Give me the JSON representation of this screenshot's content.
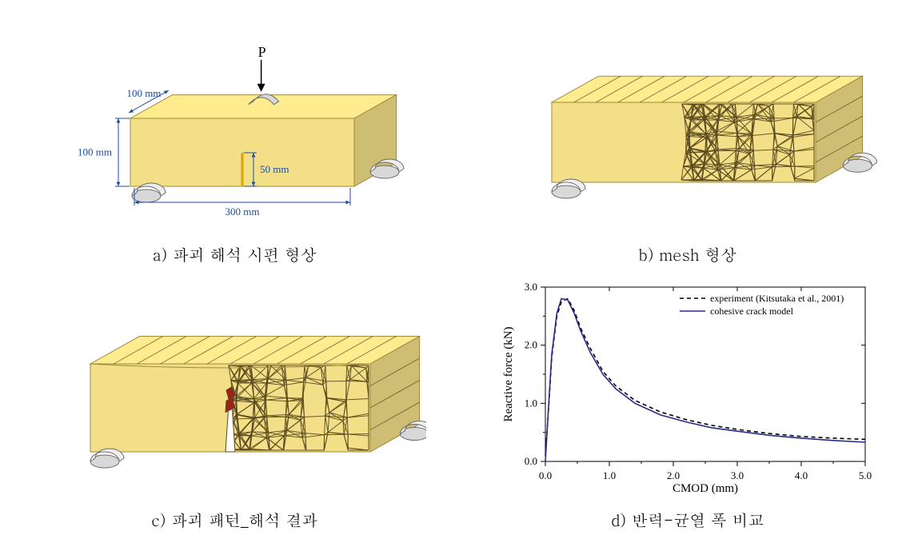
{
  "panels": {
    "a": {
      "caption": "a) 파괴 해석 시편 형상",
      "dims": {
        "width": "100 mm",
        "height": "100 mm",
        "length": "300 mm",
        "notch": "50 mm"
      },
      "load_label": "P",
      "block_fill": "#f2df87",
      "block_edge": "#a2893a",
      "support_fill": "#d8d8d8",
      "support_edge": "#6b6b6b",
      "dim_color": "#1a4ea0",
      "label_color": "#000000"
    },
    "b": {
      "caption": "b) mesh 형상",
      "block_fill": "#f2df87",
      "block_edge": "#a2893a",
      "mesh_edge": "#5a4a1e",
      "support_fill": "#d8d8d8",
      "support_edge": "#6b6b6b"
    },
    "c": {
      "caption": "c) 파괴 패턴_해석 결과",
      "block_fill": "#f2df87",
      "block_edge": "#a2893a",
      "mesh_edge": "#5a4a1e",
      "crack_color": "#a02018"
    },
    "d": {
      "caption": "d) 반력-균열 폭 비교",
      "chart": {
        "type": "line",
        "xlabel": "CMOD (mm)",
        "ylabel": "Reactive force (kN)",
        "xlim": [
          0.0,
          5.0
        ],
        "ylim": [
          0.0,
          3.0
        ],
        "xticks": [
          0.0,
          1.0,
          2.0,
          3.0,
          4.0,
          5.0
        ],
        "yticks": [
          0.0,
          1.0,
          2.0,
          3.0
        ],
        "label_fontsize": 15,
        "tick_fontsize": 13,
        "legend_fontsize": 12,
        "line_width": 1.6,
        "background_color": "#ffffff",
        "axis_color": "#000000",
        "series": [
          {
            "name": "experiment (Kitsutaka et al., 2001)",
            "style": "dashed",
            "color": "#000000",
            "x": [
              0.0,
              0.05,
              0.1,
              0.18,
              0.25,
              0.35,
              0.45,
              0.55,
              0.7,
              0.9,
              1.1,
              1.4,
              1.8,
              2.2,
              2.6,
              3.0,
              3.5,
              4.0,
              4.5,
              5.0
            ],
            "y": [
              0.1,
              0.9,
              1.8,
              2.5,
              2.75,
              2.8,
              2.6,
              2.3,
              1.95,
              1.55,
              1.3,
              1.05,
              0.85,
              0.72,
              0.62,
              0.55,
              0.48,
              0.43,
              0.4,
              0.38
            ]
          },
          {
            "name": "cohesive crack model",
            "style": "solid",
            "color": "#2a2a8a",
            "x": [
              0.0,
              0.05,
              0.1,
              0.18,
              0.25,
              0.35,
              0.45,
              0.55,
              0.7,
              0.9,
              1.1,
              1.4,
              1.8,
              2.2,
              2.6,
              3.0,
              3.5,
              4.0,
              4.5,
              5.0
            ],
            "y": [
              0.0,
              0.95,
              1.85,
              2.55,
              2.8,
              2.78,
              2.55,
              2.25,
              1.88,
              1.5,
              1.25,
              1.0,
              0.8,
              0.68,
              0.58,
              0.52,
              0.45,
              0.4,
              0.36,
              0.33
            ]
          }
        ]
      }
    }
  }
}
